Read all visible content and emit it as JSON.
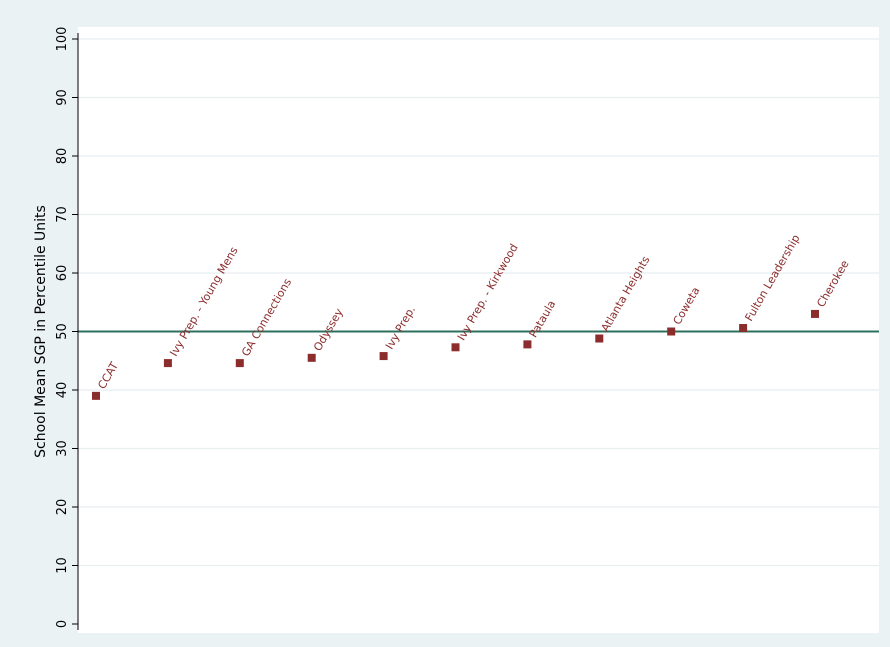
{
  "chart_data": {
    "type": "scatter",
    "title": "",
    "xlabel": "",
    "ylabel": "School Mean SGP in Percentile Units",
    "ylim": [
      0,
      100
    ],
    "y_ticks": [
      0,
      10,
      20,
      30,
      40,
      50,
      60,
      70,
      80,
      90,
      100
    ],
    "grid": true,
    "reference_line": 50,
    "marker_color": "#8c2d2d",
    "reference_line_color": "#2e6f5e",
    "outer_background": "#eaf2f3",
    "grid_color": "#e6eef0",
    "points": [
      {
        "label": "CCAT",
        "y": 39.0
      },
      {
        "label": "Ivy Prep. - Young Mens",
        "y": 44.6
      },
      {
        "label": "GA Connections",
        "y": 44.6
      },
      {
        "label": "Odyssey",
        "y": 45.5
      },
      {
        "label": "Ivy Prep.",
        "y": 45.8
      },
      {
        "label": "Ivy Prep. - Kirkwood",
        "y": 47.3
      },
      {
        "label": "Pataula",
        "y": 47.8
      },
      {
        "label": "Atlanta Heights",
        "y": 48.8
      },
      {
        "label": "Coweta",
        "y": 50.0
      },
      {
        "label": "Fulton Leadership",
        "y": 50.6
      },
      {
        "label": "Cherokee",
        "y": 53.0
      }
    ]
  }
}
